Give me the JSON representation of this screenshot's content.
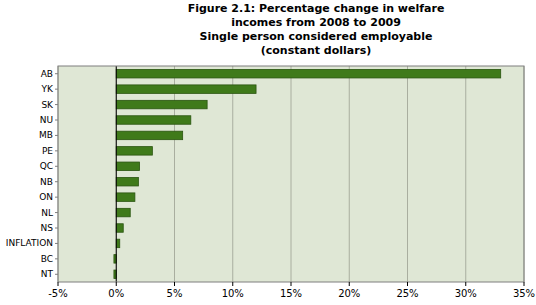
{
  "chart_data": {
    "type": "bar",
    "orientation": "horizontal",
    "title": "Figure 2.1: Percentage change in welfare incomes from 2008 to 2009",
    "subtitle": "Single person considered employable (constant dollars)",
    "categories": [
      "AB",
      "YK",
      "SK",
      "NU",
      "MB",
      "PE",
      "QC",
      "NB",
      "ON",
      "NL",
      "NS",
      "INFLATION",
      "BC",
      "NT"
    ],
    "values": [
      33,
      12,
      7.8,
      6.4,
      5.7,
      3.1,
      2.0,
      1.9,
      1.6,
      1.2,
      0.6,
      0.3,
      -0.2,
      -0.2
    ],
    "color": "#3f7a1a",
    "xlim": [
      -5,
      35
    ],
    "xticks": [
      {
        "value": -5,
        "label": "-5%"
      },
      {
        "value": 0,
        "label": "0%"
      },
      {
        "value": 5,
        "label": "5%"
      },
      {
        "value": 10,
        "label": "10%"
      },
      {
        "value": 15,
        "label": "15%"
      },
      {
        "value": 20,
        "label": "20%"
      },
      {
        "value": 25,
        "label": "25%"
      },
      {
        "value": 30,
        "label": "30%"
      },
      {
        "value": 35,
        "label": "35%"
      }
    ],
    "grid": true
  }
}
